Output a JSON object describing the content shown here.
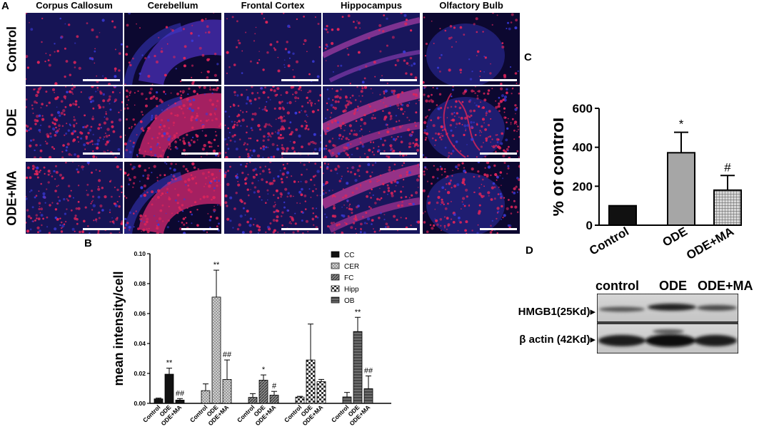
{
  "panel_a": {
    "letter": "A",
    "columns": [
      "Corpus Callosum",
      "Cerebellum",
      "Frontal Cortex",
      "Hippocampus",
      "Olfactory Bulb"
    ],
    "rows": [
      "Control",
      "ODE",
      "ODE+MA"
    ]
  },
  "panel_b": {
    "letter": "B"
  },
  "panel_c": {
    "letter": "C"
  },
  "panel_d": {
    "letter": "D",
    "lane_labels": [
      "control",
      "ODE",
      "ODE+MA"
    ],
    "band_labels": [
      "HMGB1(25Kd)▸",
      "β actin (42Kd)▸"
    ]
  },
  "chart_data": [
    {
      "panel": "B",
      "type": "bar",
      "ylabel": "mean intensity/cell",
      "ylim": [
        0,
        0.1
      ],
      "yticks": [
        "0.00",
        "0.02",
        "0.04",
        "0.06",
        "0.08",
        "0.10"
      ],
      "groups": [
        {
          "name": "CC",
          "categories": [
            "Control",
            "ODE",
            "ODE+MA"
          ],
          "values": [
            0.003,
            0.0195,
            0.0022
          ],
          "errors": [
            0.0005,
            0.004,
            0.001
          ],
          "annotations": [
            "",
            "**",
            "##"
          ]
        },
        {
          "name": "CER",
          "categories": [
            "Control",
            "ODE",
            "ODE+MA"
          ],
          "values": [
            0.0085,
            0.071,
            0.016
          ],
          "errors": [
            0.0045,
            0.018,
            0.013
          ],
          "annotations": [
            "",
            "**",
            "##"
          ]
        },
        {
          "name": "FC",
          "categories": [
            "Control",
            "ODE",
            "ODE+MA"
          ],
          "values": [
            0.004,
            0.0155,
            0.0055
          ],
          "errors": [
            0.0025,
            0.0035,
            0.0025
          ],
          "annotations": [
            "",
            "*",
            "#"
          ]
        },
        {
          "name": "Hipp",
          "categories": [
            "Control",
            "ODE",
            "ODE+MA"
          ],
          "values": [
            0.0042,
            0.029,
            0.0145
          ],
          "errors": [
            0.0005,
            0.024,
            0.0015
          ],
          "annotations": [
            "",
            "",
            ""
          ]
        },
        {
          "name": "OB",
          "categories": [
            "Control",
            "ODE",
            "ODE+MA"
          ],
          "values": [
            0.0043,
            0.048,
            0.0098
          ],
          "errors": [
            0.003,
            0.0095,
            0.0085
          ],
          "annotations": [
            "",
            "**",
            "##"
          ]
        }
      ],
      "legend": [
        "CC",
        "CER",
        "FC",
        "Hipp",
        "OB"
      ],
      "legend_position": "top-right"
    },
    {
      "panel": "C",
      "type": "bar",
      "ylabel": "% of control",
      "ylim": [
        0,
        600
      ],
      "yticks": [
        "0",
        "200",
        "400",
        "600"
      ],
      "categories": [
        "Control",
        "ODE",
        "ODE+MA"
      ],
      "values": [
        100,
        372,
        180
      ],
      "errors": [
        0,
        105,
        75
      ],
      "annotations": [
        "",
        "*",
        "#"
      ]
    }
  ],
  "colors": {
    "tissue_background": "#0c0830",
    "nucleus_red": "#e0245a",
    "counterstain_blue": "#3a3ad8",
    "bar_black": "#111111",
    "bar_gray": "#a6a6a6"
  }
}
